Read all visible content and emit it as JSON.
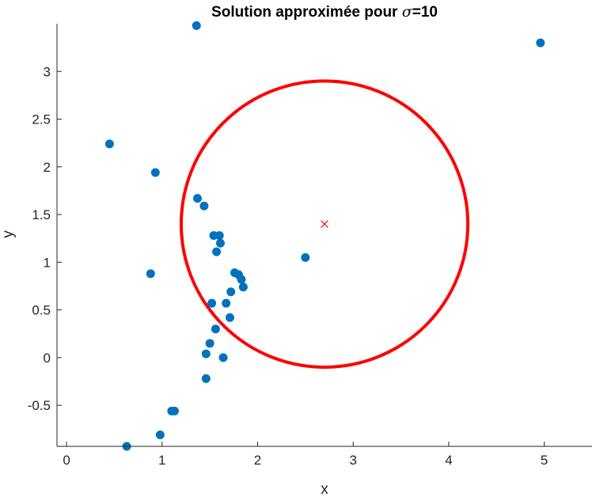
{
  "chart_data": {
    "type": "scatter",
    "title": {
      "prefix": "Solution approximée pour ",
      "symbol": "σ",
      "suffix": "=10"
    },
    "xlabel": "x",
    "ylabel": "y",
    "xlim": [
      -0.1,
      5.5
    ],
    "ylim": [
      -0.93,
      3.5
    ],
    "xticks": [
      0,
      1,
      2,
      3,
      4,
      5
    ],
    "xtick_labels": [
      "0",
      "1",
      "2",
      "3",
      "4",
      "5"
    ],
    "yticks": [
      -0.5,
      0,
      0.5,
      1,
      1.5,
      2,
      2.5,
      3
    ],
    "ytick_labels": [
      "-0.5",
      "0",
      "0.5",
      "1",
      "1.5",
      "2",
      "2.5",
      "3"
    ],
    "grid": false,
    "point_color": "#0072BD",
    "points": [
      {
        "x": 1.36,
        "y": 3.48
      },
      {
        "x": 4.96,
        "y": 3.3
      },
      {
        "x": 0.45,
        "y": 2.24
      },
      {
        "x": 0.93,
        "y": 1.94
      },
      {
        "x": 1.37,
        "y": 1.67
      },
      {
        "x": 1.44,
        "y": 1.59
      },
      {
        "x": 1.54,
        "y": 1.28
      },
      {
        "x": 1.6,
        "y": 1.28
      },
      {
        "x": 1.61,
        "y": 1.2
      },
      {
        "x": 1.57,
        "y": 1.11
      },
      {
        "x": 2.5,
        "y": 1.05
      },
      {
        "x": 0.88,
        "y": 0.88
      },
      {
        "x": 1.76,
        "y": 0.89
      },
      {
        "x": 1.8,
        "y": 0.87
      },
      {
        "x": 1.83,
        "y": 0.82
      },
      {
        "x": 1.85,
        "y": 0.74
      },
      {
        "x": 1.72,
        "y": 0.69
      },
      {
        "x": 1.52,
        "y": 0.57
      },
      {
        "x": 1.67,
        "y": 0.57
      },
      {
        "x": 1.71,
        "y": 0.42
      },
      {
        "x": 1.56,
        "y": 0.3
      },
      {
        "x": 1.5,
        "y": 0.15
      },
      {
        "x": 1.46,
        "y": 0.04
      },
      {
        "x": 1.64,
        "y": 0.0
      },
      {
        "x": 1.46,
        "y": -0.22
      },
      {
        "x": 1.1,
        "y": -0.56
      },
      {
        "x": 1.13,
        "y": -0.56
      },
      {
        "x": 0.98,
        "y": -0.81
      },
      {
        "x": 0.63,
        "y": -0.93
      }
    ],
    "center": {
      "x": 2.7,
      "y": 1.4
    },
    "center_color": "#FF0000",
    "circle": {
      "cx": 2.7,
      "cy": 1.4,
      "r": 1.5
    },
    "circle_color": "#FF0000"
  }
}
